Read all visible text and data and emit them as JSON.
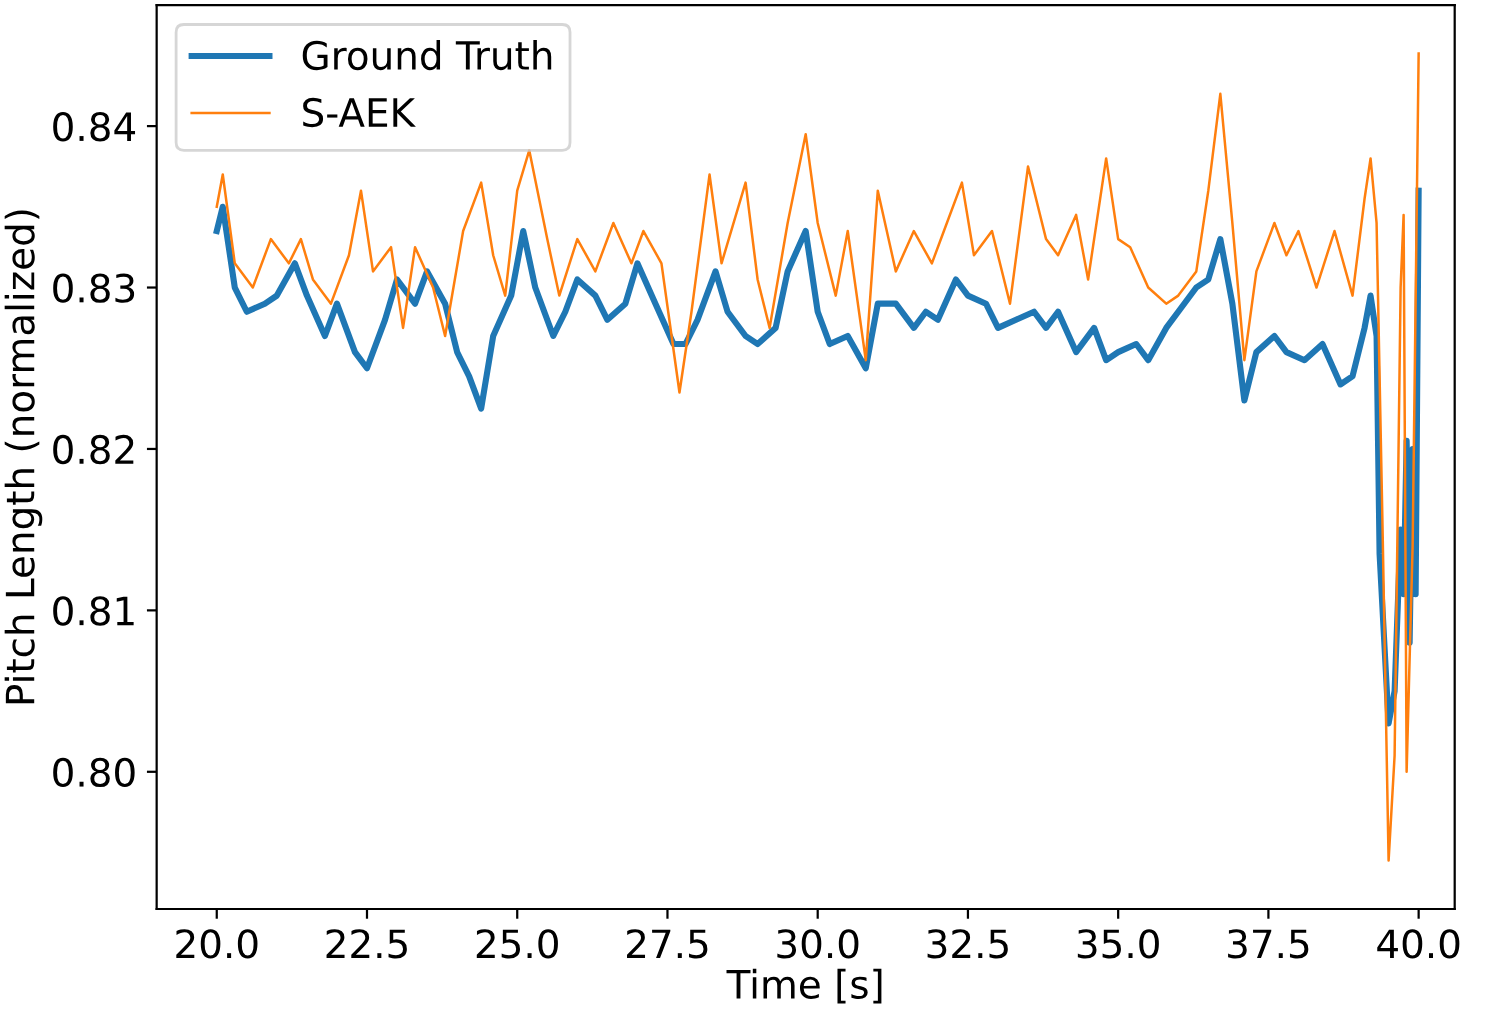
{
  "chart_data": {
    "type": "line",
    "xlabel": "Time [s]",
    "ylabel": "Pitch Length (normalized)",
    "xlim": [
      19.0,
      40.6
    ],
    "ylim": [
      0.7915,
      0.8475
    ],
    "xticks": [
      {
        "value": 20,
        "label": "20.0"
      },
      {
        "value": 22.5,
        "label": "22.5"
      },
      {
        "value": 25,
        "label": "25.0"
      },
      {
        "value": 27.5,
        "label": "27.5"
      },
      {
        "value": 30,
        "label": "30.0"
      },
      {
        "value": 32.5,
        "label": "32.5"
      },
      {
        "value": 35,
        "label": "35.0"
      },
      {
        "value": 37.5,
        "label": "37.5"
      },
      {
        "value": 40,
        "label": "40.0"
      }
    ],
    "yticks": [
      {
        "value": 0.8,
        "label": "0.80"
      },
      {
        "value": 0.81,
        "label": "0.81"
      },
      {
        "value": 0.82,
        "label": "0.82"
      },
      {
        "value": 0.83,
        "label": "0.83"
      },
      {
        "value": 0.84,
        "label": "0.84"
      }
    ],
    "grid": false,
    "legend": "top left",
    "marker": "none",
    "line_style": "solid",
    "series": [
      {
        "name": "Ground Truth",
        "color": "#1f77b4",
        "x": [
          20.0,
          20.1,
          20.3,
          20.5,
          20.8,
          21.0,
          21.3,
          21.5,
          21.8,
          22.0,
          22.3,
          22.5,
          22.8,
          23.0,
          23.3,
          23.5,
          23.8,
          24.0,
          24.2,
          24.4,
          24.6,
          24.9,
          25.1,
          25.3,
          25.6,
          25.8,
          26.0,
          26.3,
          26.5,
          26.8,
          27.0,
          27.3,
          27.6,
          27.8,
          28.0,
          28.3,
          28.5,
          28.8,
          29.0,
          29.3,
          29.5,
          29.8,
          30.0,
          30.2,
          30.5,
          30.8,
          31.0,
          31.3,
          31.6,
          31.8,
          32.0,
          32.3,
          32.5,
          32.8,
          33.0,
          33.3,
          33.6,
          33.8,
          34.0,
          34.3,
          34.6,
          34.8,
          35.0,
          35.3,
          35.5,
          35.8,
          36.0,
          36.3,
          36.5,
          36.7,
          36.9,
          37.1,
          37.3,
          37.6,
          37.8,
          38.1,
          38.4,
          38.7,
          38.9,
          39.1,
          39.2,
          39.3,
          39.35,
          39.5,
          39.6,
          39.7,
          39.75,
          39.8,
          39.85,
          39.9,
          39.95,
          40.0
        ],
        "values": [
          0.8335,
          0.835,
          0.83,
          0.8285,
          0.829,
          0.8295,
          0.8315,
          0.8295,
          0.827,
          0.829,
          0.826,
          0.825,
          0.828,
          0.8305,
          0.829,
          0.831,
          0.829,
          0.826,
          0.8245,
          0.8225,
          0.827,
          0.8295,
          0.8335,
          0.83,
          0.827,
          0.8285,
          0.8305,
          0.8295,
          0.828,
          0.829,
          0.8315,
          0.829,
          0.8265,
          0.8265,
          0.828,
          0.831,
          0.8285,
          0.827,
          0.8265,
          0.8275,
          0.831,
          0.8335,
          0.8285,
          0.8265,
          0.827,
          0.825,
          0.829,
          0.829,
          0.8275,
          0.8285,
          0.828,
          0.8305,
          0.8295,
          0.829,
          0.8275,
          0.828,
          0.8285,
          0.8275,
          0.8285,
          0.826,
          0.8275,
          0.8255,
          0.826,
          0.8265,
          0.8255,
          0.8275,
          0.8285,
          0.83,
          0.8305,
          0.833,
          0.829,
          0.823,
          0.826,
          0.827,
          0.826,
          0.8255,
          0.8265,
          0.824,
          0.8245,
          0.8275,
          0.8295,
          0.827,
          0.8135,
          0.803,
          0.805,
          0.815,
          0.811,
          0.8205,
          0.808,
          0.82,
          0.811,
          0.836
        ]
      },
      {
        "name": "S-AEK",
        "color": "#ff7f0e",
        "x": [
          20.0,
          20.1,
          20.3,
          20.6,
          20.9,
          21.2,
          21.4,
          21.6,
          21.9,
          22.2,
          22.4,
          22.6,
          22.9,
          23.1,
          23.3,
          23.6,
          23.8,
          24.1,
          24.4,
          24.6,
          24.8,
          25.0,
          25.2,
          25.5,
          25.7,
          26.0,
          26.3,
          26.6,
          26.9,
          27.1,
          27.4,
          27.7,
          27.9,
          28.2,
          28.4,
          28.8,
          29.0,
          29.2,
          29.5,
          29.8,
          30.0,
          30.3,
          30.5,
          30.8,
          31.0,
          31.3,
          31.6,
          31.9,
          32.1,
          32.4,
          32.6,
          32.9,
          33.2,
          33.5,
          33.8,
          34.0,
          34.3,
          34.5,
          34.8,
          35.0,
          35.2,
          35.5,
          35.8,
          36.0,
          36.3,
          36.5,
          36.7,
          36.9,
          37.1,
          37.3,
          37.6,
          37.8,
          38.0,
          38.3,
          38.6,
          38.9,
          39.1,
          39.2,
          39.3,
          39.4,
          39.5,
          39.6,
          39.7,
          39.75,
          39.8,
          39.9,
          40.0
        ],
        "values": [
          0.835,
          0.837,
          0.8315,
          0.83,
          0.833,
          0.8315,
          0.833,
          0.8305,
          0.829,
          0.832,
          0.836,
          0.831,
          0.8325,
          0.8275,
          0.8325,
          0.83,
          0.827,
          0.8335,
          0.8365,
          0.832,
          0.8295,
          0.836,
          0.8385,
          0.833,
          0.8295,
          0.833,
          0.831,
          0.834,
          0.8315,
          0.8335,
          0.8315,
          0.8235,
          0.8285,
          0.837,
          0.8315,
          0.8365,
          0.8305,
          0.8275,
          0.834,
          0.8395,
          0.834,
          0.8295,
          0.8335,
          0.8255,
          0.836,
          0.831,
          0.8335,
          0.8315,
          0.8335,
          0.8365,
          0.832,
          0.8335,
          0.829,
          0.8375,
          0.833,
          0.832,
          0.8345,
          0.8305,
          0.838,
          0.833,
          0.8325,
          0.83,
          0.829,
          0.8295,
          0.831,
          0.836,
          0.842,
          0.834,
          0.8255,
          0.831,
          0.834,
          0.832,
          0.8335,
          0.83,
          0.8335,
          0.8295,
          0.8355,
          0.838,
          0.834,
          0.815,
          0.7945,
          0.801,
          0.83,
          0.8345,
          0.8,
          0.814,
          0.8445
        ]
      }
    ]
  }
}
